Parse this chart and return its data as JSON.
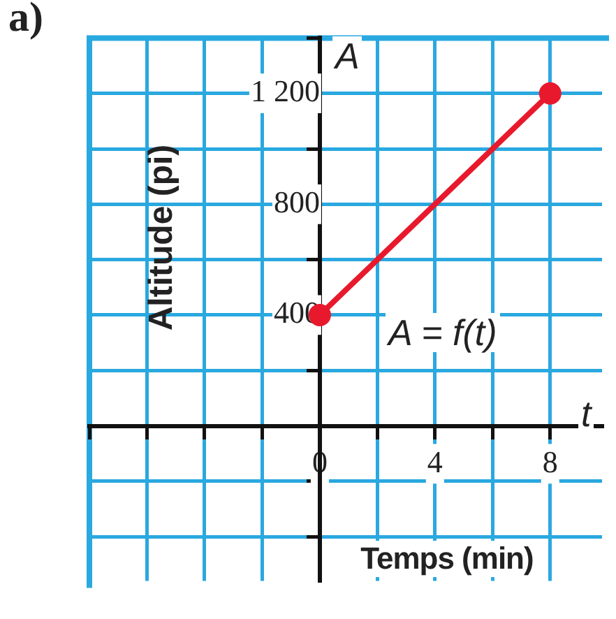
{
  "chart_data": {
    "type": "line",
    "title": "a)",
    "xlabel": "Temps (min)",
    "ylabel": "Altitude (pi)",
    "x": [
      0,
      8
    ],
    "series": [
      {
        "color": "#e8192c",
        "values": [
          400,
          1200
        ]
      }
    ],
    "annotations": [
      "A",
      "t",
      "A = f(t)"
    ],
    "xlim": [
      -8,
      9.8
    ],
    "ylim": [
      -560,
      1400
    ],
    "xticks": [
      {
        "value": -8,
        "label": null
      },
      {
        "value": -6,
        "label": null
      },
      {
        "value": -4,
        "label": null
      },
      {
        "value": -2,
        "label": null
      },
      0,
      {
        "value": 2,
        "label": null
      },
      4,
      {
        "value": 6,
        "label": null
      },
      8
    ],
    "yticks": [
      {
        "value": -400,
        "label": null
      },
      {
        "value": -200,
        "label": null
      },
      {
        "value": 0,
        "label": null
      },
      {
        "value": 200,
        "label": null
      },
      400,
      {
        "value": 600,
        "label": null
      },
      800,
      {
        "value": 1000,
        "label": null
      },
      {
        "value": 1200,
        "label": "1 200"
      },
      {
        "value": 1400,
        "label": null
      }
    ],
    "grid": true,
    "marker": "circle"
  }
}
